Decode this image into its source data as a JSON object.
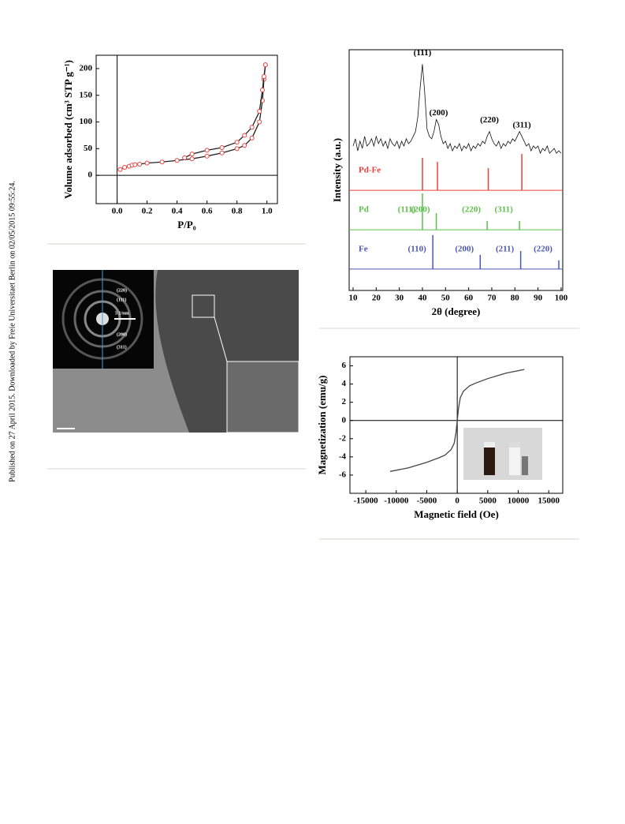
{
  "side_note": "Published on 27 April 2015. Downloaded by Freie Universitaet Berlin on 02/05/2015 09:55:24.",
  "figure_image": {
    "ring_labels": [
      "(220)",
      "(111)",
      "(200)",
      "(311)"
    ],
    "scale_label": "5 1/nm"
  },
  "chart_data": [
    {
      "type": "line",
      "xlabel": "P/P₀",
      "ylabel": "Volume adsorbed (cm³ STP g⁻¹)",
      "xlim": [
        -0.14,
        1.07
      ],
      "ylim": [
        -53,
        225
      ],
      "xticks": [
        {
          "value": 0,
          "label": "0.0"
        },
        0.2,
        0.4,
        0.6,
        0.8,
        {
          "value": 1,
          "label": "1.0"
        }
      ],
      "yticks": [
        0,
        50,
        100,
        150,
        200
      ],
      "series": [
        {
          "color": "#222222",
          "marker_color": "#e8413c",
          "x": [
            0.02,
            0.05,
            0.08,
            0.1,
            0.12,
            0.15,
            0.2,
            0.3,
            0.4,
            0.5,
            0.6,
            0.7,
            0.8,
            0.85,
            0.9,
            0.95,
            0.97,
            0.98,
            0.99
          ],
          "values": [
            11,
            15,
            17,
            19,
            20,
            21,
            23,
            25,
            28,
            31,
            36,
            42,
            50,
            56,
            70,
            100,
            140,
            180,
            207
          ]
        },
        {
          "color": "#222222",
          "marker_color": "#e8413c",
          "x": [
            0.99,
            0.98,
            0.97,
            0.95,
            0.9,
            0.85,
            0.8,
            0.7,
            0.6,
            0.5,
            0.45
          ],
          "values": [
            207,
            185,
            160,
            120,
            90,
            75,
            62,
            52,
            47,
            40,
            33
          ]
        }
      ]
    },
    {
      "type": "line",
      "xlabel": "2θ (degree)",
      "ylabel": "Intensity (a.u.)",
      "xlim": [
        8.3,
        100.7
      ],
      "ylim": [
        0,
        100
      ],
      "xticks": [
        10,
        20,
        30,
        40,
        50,
        60,
        70,
        80,
        90,
        100
      ],
      "series": [
        {
          "color": "#111111",
          "x": [
            10,
            11,
            12,
            13,
            14,
            15,
            16,
            17,
            18,
            19,
            20,
            21,
            22,
            23,
            24,
            25,
            26,
            27,
            28,
            29,
            30,
            31,
            32,
            33,
            34,
            35,
            36,
            37,
            38,
            39,
            40,
            41,
            42,
            43,
            44,
            45,
            46,
            47,
            48,
            49,
            50,
            51,
            52,
            53,
            54,
            55,
            56,
            57,
            58,
            59,
            60,
            61,
            62,
            63,
            64,
            65,
            66,
            67,
            68,
            69,
            70,
            71,
            72,
            73,
            74,
            75,
            76,
            77,
            78,
            79,
            80,
            81,
            82,
            83,
            84,
            85,
            86,
            87,
            88,
            89,
            90,
            91,
            92,
            93,
            94,
            95,
            96,
            97,
            98,
            99,
            100
          ],
          "values": [
            60,
            63,
            58,
            62,
            59,
            64,
            60,
            61,
            63,
            60,
            64,
            61,
            63,
            60,
            62,
            59,
            63,
            61,
            60,
            62,
            59,
            62,
            60,
            63,
            61,
            62,
            64,
            66,
            72,
            84,
            94,
            82,
            67,
            64,
            63,
            66,
            71,
            69,
            64,
            61,
            62,
            59,
            61,
            58,
            60,
            59,
            61,
            58,
            60,
            59,
            61,
            58,
            60,
            59,
            61,
            60,
            62,
            61,
            64,
            66,
            63,
            61,
            60,
            62,
            59,
            61,
            60,
            62,
            61,
            63,
            62,
            64,
            66,
            64,
            62,
            60,
            61,
            58,
            60,
            59,
            60,
            57,
            59,
            58,
            60,
            57,
            58,
            59,
            57,
            58,
            57
          ]
        }
      ],
      "annotations": [
        {
          "text": "(111)",
          "x": 40
        },
        {
          "text": "(200)",
          "x": 47
        },
        {
          "text": "(220)",
          "x": 69
        },
        {
          "text": "(311)",
          "x": 83
        }
      ],
      "references": [
        {
          "name": "Pd-Fe",
          "color": "#e8413c",
          "baseline": 41.6,
          "positions": [
            40,
            46.5,
            68.5,
            83
          ],
          "heights": [
            55.1,
            53.4,
            50.8,
            56.7
          ]
        },
        {
          "name": "Pd",
          "color": "#5bbf4a",
          "baseline": 25.2,
          "positions": [
            40,
            46,
            68,
            82
          ],
          "heights": [
            40.3,
            32.1,
            28.9,
            28.9
          ],
          "labels": [
            "(111)",
            "(200)",
            "(220)",
            "(311)"
          ]
        },
        {
          "name": "Fe",
          "color": "#4a56b5",
          "baseline": 8.9,
          "positions": [
            44.5,
            65,
            82.5,
            99
          ],
          "heights": [
            23,
            14.8,
            16.4,
            12.5
          ],
          "labels": [
            "(110)",
            "(200)",
            "(211)",
            "(220)"
          ]
        }
      ]
    },
    {
      "type": "line",
      "xlabel": "Magnetic field (Oe)",
      "ylabel": "Magnetization (emu/g)",
      "xlim": [
        -17600,
        17300
      ],
      "ylim": [
        -8,
        7
      ],
      "xticks": [
        -15000,
        -10000,
        -5000,
        0,
        5000,
        10000,
        15000
      ],
      "yticks": [
        -6,
        -4,
        -2,
        0,
        2,
        4,
        6
      ],
      "series": [
        {
          "color": "#444444",
          "x": [
            -11000,
            -8000,
            -5000,
            -3000,
            -2000,
            -1000,
            -500,
            -200,
            0,
            200,
            500,
            1000,
            2000,
            3000,
            5000,
            8000,
            11000
          ],
          "values": [
            -5.6,
            -5.2,
            -4.6,
            -4.1,
            -3.8,
            -3.2,
            -2.5,
            -1.3,
            0,
            1.3,
            2.5,
            3.2,
            3.8,
            4.1,
            4.6,
            5.2,
            5.6
          ]
        }
      ]
    }
  ]
}
